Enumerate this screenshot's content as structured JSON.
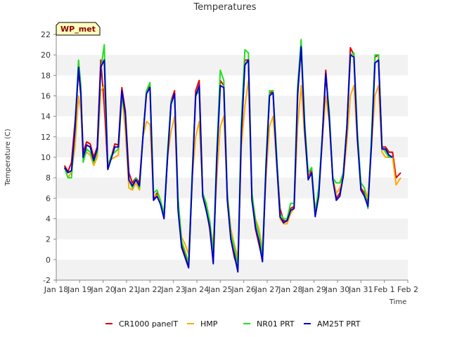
{
  "chart_data": {
    "type": "line",
    "title": "Temperatures",
    "xlabel": "Time",
    "ylabel": "Temperature (C)",
    "badge": "WP_met",
    "xlim": [
      0,
      15
    ],
    "ylim": [
      -2,
      22
    ],
    "yticks": [
      -2,
      0,
      2,
      4,
      6,
      8,
      10,
      12,
      14,
      16,
      18,
      20,
      22
    ],
    "xticks": [
      {
        "v": 0,
        "label": "Jan 18"
      },
      {
        "v": 1,
        "label": "Jan 19"
      },
      {
        "v": 2,
        "label": "Jan 20"
      },
      {
        "v": 3,
        "label": "Jan 21"
      },
      {
        "v": 4,
        "label": "Jan 22"
      },
      {
        "v": 5,
        "label": "Jan 23"
      },
      {
        "v": 6,
        "label": "Jan 24"
      },
      {
        "v": 7,
        "label": "Jan 25"
      },
      {
        "v": 8,
        "label": "Jan 26"
      },
      {
        "v": 9,
        "label": "Jan 27"
      },
      {
        "v": 10,
        "label": "Jan 28"
      },
      {
        "v": 11,
        "label": "Jan 29"
      },
      {
        "v": 12,
        "label": "Jan 30"
      },
      {
        "v": 13,
        "label": "Jan 31"
      },
      {
        "v": 14,
        "label": "Feb 1"
      },
      {
        "v": 15,
        "label": "Feb 2"
      }
    ],
    "x": [
      0.35,
      0.5,
      0.65,
      0.8,
      0.95,
      1.05,
      1.15,
      1.3,
      1.45,
      1.6,
      1.75,
      1.9,
      2.05,
      2.2,
      2.35,
      2.5,
      2.65,
      2.8,
      2.95,
      3.1,
      3.25,
      3.4,
      3.55,
      3.7,
      3.85,
      4.0,
      4.15,
      4.3,
      4.45,
      4.6,
      4.75,
      4.9,
      5.05,
      5.2,
      5.35,
      5.5,
      5.65,
      5.8,
      5.95,
      6.1,
      6.25,
      6.4,
      6.55,
      6.7,
      6.85,
      7.0,
      7.15,
      7.3,
      7.45,
      7.6,
      7.75,
      7.9,
      8.05,
      8.2,
      8.35,
      8.5,
      8.65,
      8.8,
      8.95,
      9.1,
      9.25,
      9.4,
      9.55,
      9.7,
      9.85,
      10.0,
      10.15,
      10.3,
      10.45,
      10.6,
      10.75,
      10.9,
      11.05,
      11.2,
      11.35,
      11.5,
      11.65,
      11.8,
      11.95,
      12.1,
      12.25,
      12.4,
      12.55,
      12.7,
      12.85,
      13.0,
      13.15,
      13.3,
      13.45,
      13.6,
      13.75,
      13.9,
      14.05,
      14.2,
      14.35
    ],
    "series": [
      {
        "name": "CR1000 panelT",
        "color": "#dd0000",
        "values": [
          9.2,
          8.6,
          9.5,
          13.5,
          18.5,
          16.0,
          10.5,
          11.5,
          11.3,
          10.0,
          11.0,
          19.5,
          15.0,
          9.0,
          10.0,
          11.3,
          11.2,
          16.8,
          14.5,
          8.5,
          7.5,
          8.0,
          7.5,
          12.0,
          16.5,
          17.0,
          6.0,
          6.5,
          5.5,
          4.2,
          10.0,
          15.5,
          16.5,
          5.0,
          1.5,
          0.5,
          -0.5,
          8.0,
          16.5,
          17.5,
          6.5,
          5.0,
          3.0,
          -0.2,
          10.0,
          17.5,
          17.0,
          6.0,
          2.0,
          0.2,
          -0.8,
          12.0,
          19.5,
          19.5,
          6.0,
          3.0,
          1.5,
          0.0,
          9.0,
          16.2,
          16.5,
          10.0,
          5.0,
          3.8,
          3.8,
          5.0,
          5.2,
          16.0,
          21.0,
          13.0,
          8.0,
          8.8,
          4.5,
          6.5,
          12.0,
          18.5,
          14.0,
          8.0,
          6.0,
          6.5,
          8.5,
          13.0,
          20.7,
          20.0,
          12.0,
          7.0,
          6.5,
          5.5,
          11.5,
          19.8,
          20.0,
          11.0,
          11.0,
          10.5,
          10.5
        ]
      },
      {
        "name": "HMP",
        "color": "#ffaa00",
        "values": [
          9.0,
          8.0,
          8.6,
          11.0,
          16.0,
          14.5,
          10.0,
          10.5,
          10.2,
          9.2,
          10.0,
          16.5,
          17.0,
          9.5,
          9.8,
          10.0,
          10.2,
          16.2,
          12.5,
          7.0,
          6.8,
          7.5,
          6.8,
          12.0,
          13.5,
          13.2,
          6.2,
          6.3,
          5.6,
          4.5,
          10.0,
          12.5,
          14.0,
          5.5,
          2.2,
          1.5,
          0.5,
          8.0,
          12.0,
          13.5,
          6.5,
          5.5,
          3.5,
          1.5,
          8.0,
          13.0,
          14.0,
          6.5,
          3.0,
          1.5,
          0.2,
          11.0,
          15.0,
          17.5,
          6.5,
          4.0,
          3.0,
          1.0,
          8.0,
          13.0,
          14.0,
          9.5,
          4.0,
          3.5,
          3.5,
          4.5,
          5.0,
          13.0,
          17.0,
          12.0,
          8.0,
          8.5,
          5.0,
          6.5,
          11.5,
          16.0,
          13.5,
          8.0,
          6.5,
          7.0,
          8.0,
          11.5,
          16.0,
          17.0,
          11.5,
          7.5,
          7.0,
          6.0,
          11.0,
          16.0,
          17.0,
          10.5,
          10.0,
          10.0,
          10.0
        ]
      },
      {
        "name": "NR01 PRT",
        "color": "#22dd22",
        "values": [
          9.0,
          8.0,
          8.0,
          13.0,
          19.5,
          17.0,
          9.5,
          10.8,
          10.5,
          9.5,
          10.5,
          18.5,
          21.0,
          9.0,
          10.2,
          10.5,
          10.8,
          16.0,
          14.0,
          7.8,
          7.0,
          8.0,
          7.0,
          12.0,
          16.5,
          17.3,
          6.5,
          6.8,
          5.8,
          4.5,
          10.5,
          15.5,
          16.0,
          6.0,
          1.8,
          0.8,
          -0.3,
          8.5,
          16.0,
          16.5,
          6.5,
          5.5,
          3.8,
          0.5,
          10.5,
          18.5,
          17.5,
          6.5,
          2.5,
          1.2,
          -0.5,
          13.5,
          20.5,
          20.2,
          6.5,
          3.8,
          2.5,
          0.5,
          9.5,
          16.5,
          16.5,
          10.5,
          4.5,
          4.0,
          4.0,
          5.5,
          5.5,
          17.0,
          21.5,
          13.5,
          8.5,
          9.0,
          4.5,
          7.0,
          12.0,
          18.0,
          14.5,
          8.0,
          7.5,
          7.5,
          8.5,
          13.0,
          20.0,
          20.2,
          12.5,
          7.5,
          7.0,
          5.0,
          12.0,
          20.0,
          20.0,
          11.0,
          10.5,
          10.0,
          10.0
        ]
      },
      {
        "name": "AM25T PRT",
        "color": "#0000cc",
        "values": [
          9.0,
          8.5,
          8.7,
          12.8,
          18.8,
          16.2,
          10.0,
          11.2,
          11.0,
          9.7,
          10.8,
          18.8,
          19.5,
          8.8,
          9.9,
          11.0,
          11.0,
          16.5,
          14.2,
          7.8,
          7.2,
          7.8,
          7.2,
          12.0,
          16.2,
          16.8,
          5.8,
          6.2,
          5.4,
          4.0,
          10.0,
          15.2,
          16.2,
          4.8,
          1.2,
          0.2,
          -0.8,
          7.8,
          16.0,
          17.0,
          6.2,
          4.8,
          3.2,
          -0.4,
          9.8,
          17.0,
          16.8,
          5.8,
          2.0,
          0.5,
          -1.2,
          12.5,
          19.0,
          19.5,
          5.8,
          3.2,
          1.8,
          -0.2,
          9.0,
          16.0,
          16.3,
          9.8,
          4.2,
          3.6,
          3.8,
          4.8,
          5.0,
          16.2,
          20.8,
          12.8,
          7.8,
          8.5,
          4.2,
          6.2,
          11.8,
          18.2,
          13.8,
          7.8,
          5.8,
          6.2,
          8.2,
          12.8,
          20.0,
          19.8,
          11.8,
          6.8,
          6.2,
          5.2,
          11.2,
          19.2,
          19.5,
          10.8,
          10.8,
          10.2,
          10.0
        ]
      }
    ],
    "tail": {
      "x": [
        14.5,
        14.7
      ],
      "values": [
        [
          8.0,
          7.3
        ],
        [
          8.5,
          8.0
        ],
        [
          8.5,
          8.3
        ],
        [
          8.0,
          7.5
        ]
      ]
    },
    "legend": "bottom",
    "grid": "alternating horizontal bands"
  }
}
